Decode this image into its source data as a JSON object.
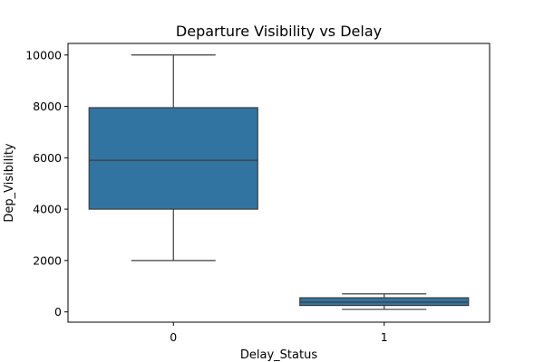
{
  "chart_data": {
    "type": "box",
    "title": "Departure Visibility vs Delay",
    "xlabel": "Delay_Status",
    "ylabel": "Dep_Visibility",
    "ylim": [
      -400,
      10450
    ],
    "yticks": [
      0,
      2000,
      4000,
      6000,
      8000,
      10000
    ],
    "grid": false,
    "box_color": "#3274a1",
    "line_color": "#3d3d3d",
    "categories": [
      "0",
      "1"
    ],
    "boxes": [
      {
        "category": "0",
        "min": 2000,
        "q1": 4000,
        "median": 5900,
        "q3": 7950,
        "max": 10000
      },
      {
        "category": "1",
        "min": 100,
        "q1": 250,
        "median": 380,
        "q3": 550,
        "max": 700
      }
    ]
  }
}
